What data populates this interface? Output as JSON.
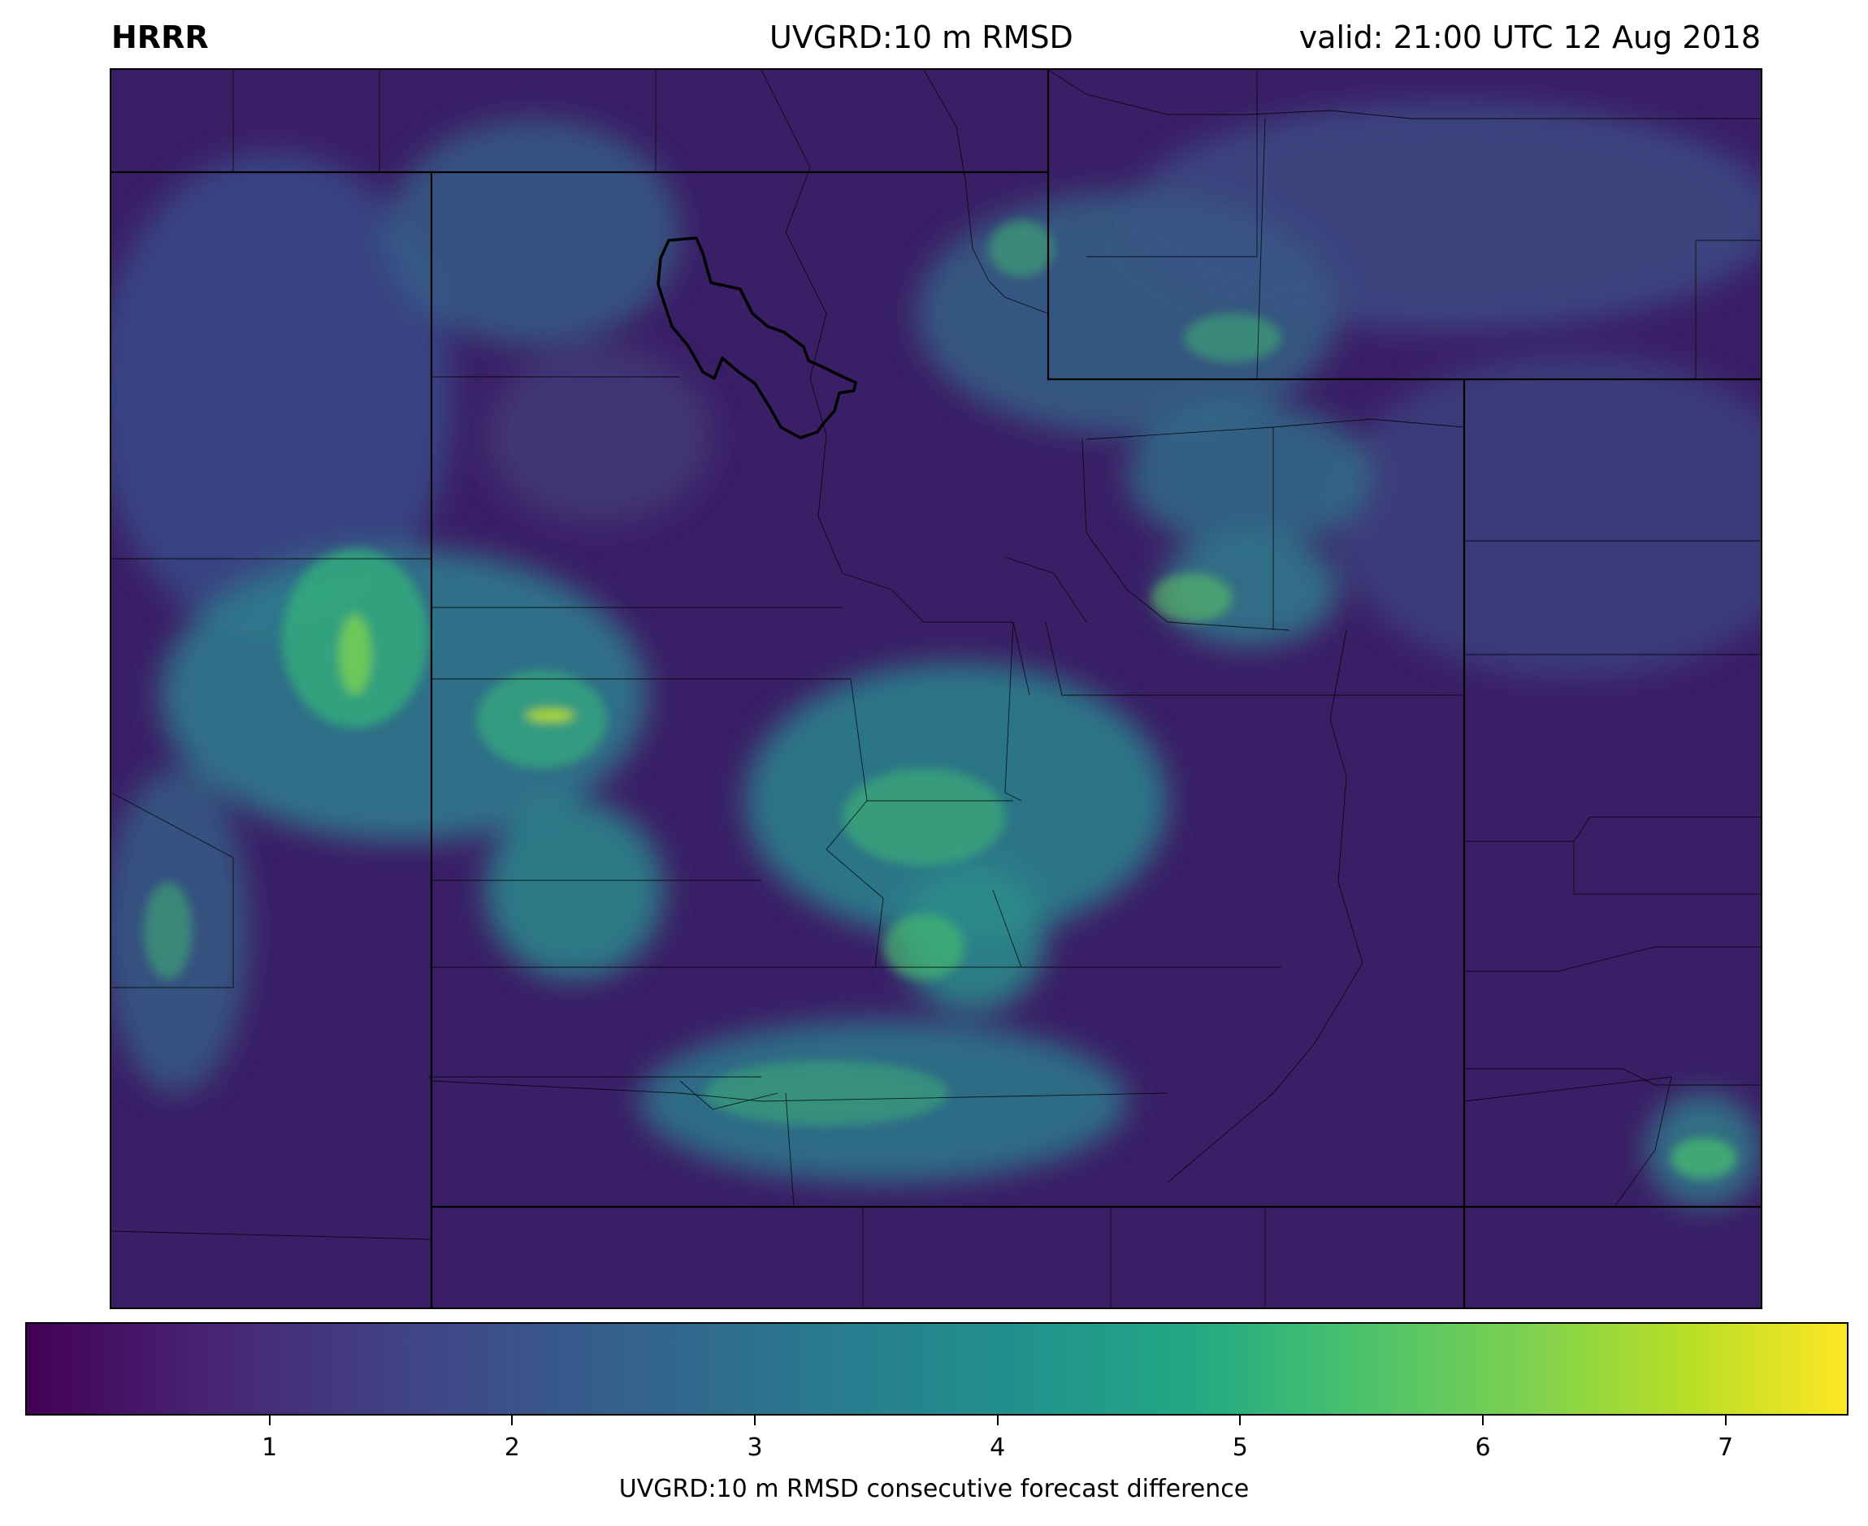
{
  "header": {
    "model": "HRRR",
    "field_title": "UVGRD:10 m RMSD",
    "valid_time": "valid: 21:00 UTC 12 Aug 2018"
  },
  "map": {
    "description_free": true,
    "field": "UVGRD:10 m RMSD consecutive forecast difference",
    "colormap": "viridis",
    "background_color": "#3b1d63",
    "boundary_color": "#000000"
  },
  "colorbar": {
    "min": 0,
    "max": 7.5,
    "ticks": [
      "1",
      "2",
      "3",
      "4",
      "5",
      "6",
      "7"
    ],
    "label": "UVGRD:10 m RMSD consecutive forecast difference",
    "colors": [
      "#440154",
      "#482475",
      "#414487",
      "#355f8d",
      "#2a788e",
      "#21908d",
      "#22a884",
      "#44bf70",
      "#7ad151",
      "#bddf26",
      "#fde725"
    ]
  }
}
